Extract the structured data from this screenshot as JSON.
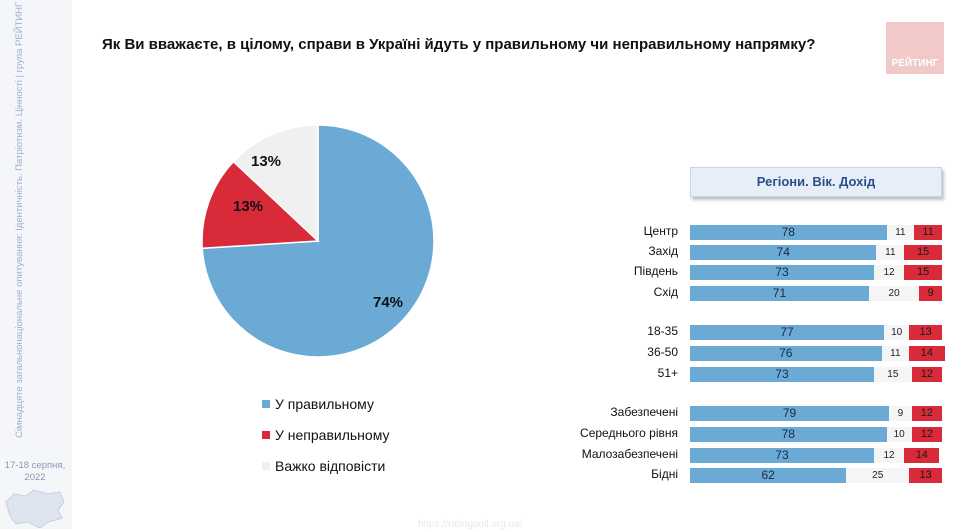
{
  "sidebar": {
    "vertical_text": "Сімнадцяте загальнонаціональне опитування: Ідентичність. Патріотизм. Цінності | група РЕЙТИНГ",
    "date": "17-18 серпня, 2022"
  },
  "title": "Як Ви вважаєте, в цілому, справи в Україні йдуть у правильному чи неправильному напрямку?",
  "logo": {
    "text": "РЕЙТИНГ"
  },
  "footer": {
    "url": "https://ratingpoll.org.ua/"
  },
  "colors": {
    "positive": "#6aaad5",
    "negative": "#d92a3a",
    "hard": "#f0f0f0"
  },
  "chart_data": [
    {
      "type": "pie",
      "slices": [
        {
          "name": "У правильному",
          "value": 74,
          "label": "74%"
        },
        {
          "name": "У неправильному",
          "value": 13,
          "label": "13%"
        },
        {
          "name": "Важко відповісти",
          "value": 13,
          "label": "13%"
        }
      ],
      "legend": [
        "У правильному",
        "У неправильному",
        "Важко відповісти"
      ],
      "legend_position": "bottom"
    },
    {
      "type": "bar",
      "stacked": true,
      "orientation": "horizontal",
      "title": "Регіони. Вік. Дохід",
      "categories": [
        "Центр",
        "Захід",
        "Південь",
        "Схід",
        "18-35",
        "36-50",
        "51+",
        "Забезпечені",
        "Середнього рівня",
        "Малозабезпечені",
        "Бідні"
      ],
      "groups": [
        [
          0,
          1,
          2,
          3
        ],
        [
          4,
          5,
          6
        ],
        [
          7,
          8,
          9,
          10
        ]
      ],
      "series": [
        {
          "name": "У правильному",
          "values": [
            78,
            74,
            73,
            71,
            77,
            76,
            73,
            79,
            78,
            73,
            62
          ]
        },
        {
          "name": "Важко відповісти",
          "values": [
            11,
            11,
            12,
            20,
            10,
            11,
            15,
            9,
            10,
            12,
            25
          ]
        },
        {
          "name": "У неправильному",
          "values": [
            11,
            15,
            15,
            9,
            13,
            14,
            12,
            12,
            12,
            14,
            13
          ]
        }
      ]
    }
  ]
}
